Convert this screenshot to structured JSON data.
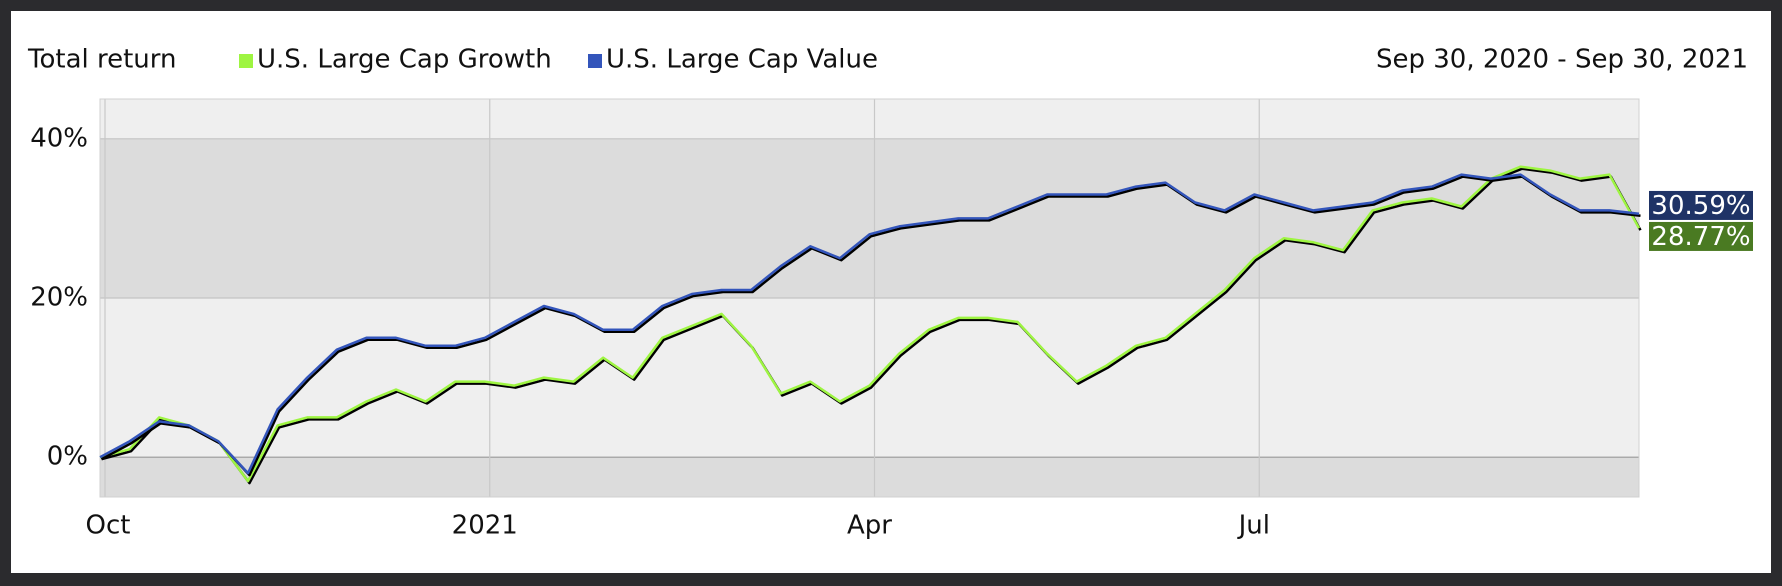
{
  "chart_data": {
    "type": "line",
    "title": "Total return",
    "date_range": "Sep 30, 2020 - Sep 30, 2021",
    "categories": [
      "Oct",
      null,
      null,
      null,
      null,
      null,
      null,
      null,
      null,
      null,
      null,
      null,
      null,
      "2021",
      null,
      null,
      null,
      null,
      null,
      null,
      null,
      null,
      null,
      null,
      null,
      null,
      "Apr",
      null,
      null,
      null,
      null,
      null,
      null,
      null,
      null,
      null,
      null,
      null,
      null,
      "Jul",
      null,
      null,
      null,
      null,
      null,
      null,
      null,
      null,
      null,
      null,
      null,
      null,
      null
    ],
    "series": [
      {
        "name": "U.S. Large Cap Growth",
        "color": "#9ef542",
        "label_color": "#4a7a22",
        "values": [
          0,
          1,
          5,
          4,
          2,
          -3,
          4,
          5,
          5,
          7,
          8.5,
          7,
          9.5,
          9.5,
          9,
          10,
          9.5,
          12.5,
          10,
          15,
          16.5,
          18,
          14,
          8,
          9.5,
          7,
          9,
          13,
          16,
          17.5,
          17.5,
          17,
          13,
          9.5,
          11.5,
          14,
          15,
          18,
          21,
          25,
          27.5,
          27,
          26,
          31,
          32,
          32.5,
          31.5,
          35,
          36.5,
          36,
          35,
          35.5,
          28.77
        ],
        "value_labels": [
          null,
          null,
          null,
          null,
          null,
          null,
          null,
          null,
          null,
          null,
          null,
          null,
          null,
          null,
          null,
          null,
          null,
          null,
          null,
          null,
          null,
          null,
          null,
          null,
          null,
          null,
          null,
          null,
          null,
          null,
          null,
          null,
          null,
          null,
          null,
          null,
          null,
          null,
          null,
          null,
          null,
          null,
          null,
          null,
          null,
          null,
          null,
          null,
          null,
          null,
          null,
          null,
          "28.77%"
        ]
      },
      {
        "name": "U.S. Large Cap Value",
        "color": "#3355bb",
        "label_color": "#1f3366",
        "values": [
          0,
          2,
          4.5,
          4,
          2,
          -2,
          6,
          10,
          13.5,
          15,
          15,
          14,
          14,
          15,
          17,
          19,
          18,
          16,
          16,
          19,
          20.5,
          21,
          21,
          24,
          26.5,
          25,
          28,
          29,
          29.5,
          30,
          30,
          31.5,
          33,
          33,
          33,
          34,
          34.5,
          32,
          31,
          33,
          32,
          31,
          31.5,
          32,
          33.5,
          34,
          35.5,
          35,
          35.5,
          33,
          31,
          31,
          30.59
        ],
        "value_labels": [
          null,
          null,
          null,
          null,
          null,
          null,
          null,
          null,
          null,
          null,
          null,
          null,
          null,
          null,
          null,
          null,
          null,
          null,
          null,
          null,
          null,
          null,
          null,
          null,
          null,
          null,
          null,
          null,
          null,
          null,
          null,
          null,
          null,
          null,
          null,
          null,
          null,
          null,
          null,
          null,
          null,
          null,
          null,
          null,
          null,
          null,
          null,
          null,
          null,
          null,
          null,
          null,
          "30.59%"
        ]
      }
    ],
    "ylim": [
      -5,
      45
    ],
    "yticks": [
      {
        "value": 0,
        "label": "0%"
      },
      {
        "value": 20,
        "label": "20%"
      },
      {
        "value": 40,
        "label": "40%"
      }
    ],
    "grid": true
  }
}
